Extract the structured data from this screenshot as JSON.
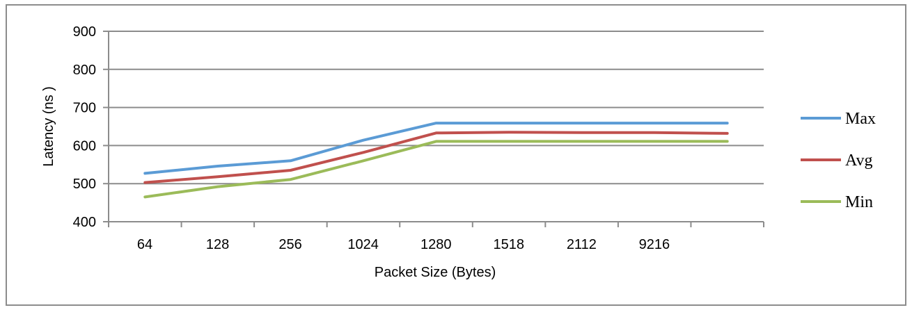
{
  "chart_data": {
    "type": "line",
    "categories": [
      "64",
      "128",
      "256",
      "1024",
      "1280",
      "1518",
      "2112",
      "9216",
      ""
    ],
    "series": [
      {
        "name": "Max",
        "color": "#5b9bd5",
        "values": [
          527,
          546,
          560,
          614,
          659,
          659,
          659,
          659,
          659
        ]
      },
      {
        "name": "Avg",
        "color": "#c0504d",
        "values": [
          503,
          518,
          535,
          582,
          633,
          635,
          634,
          634,
          632
        ]
      },
      {
        "name": "Min",
        "color": "#9bbb59",
        "values": [
          465,
          492,
          511,
          560,
          611,
          611,
          611,
          611,
          611
        ]
      }
    ],
    "xlabel": "Packet Size (Bytes)",
    "ylabel": "Latency  (ns )",
    "ylim": [
      400,
      900
    ],
    "yticks": [
      400,
      500,
      600,
      700,
      800,
      900
    ],
    "grid": true,
    "legend_position": "right"
  }
}
